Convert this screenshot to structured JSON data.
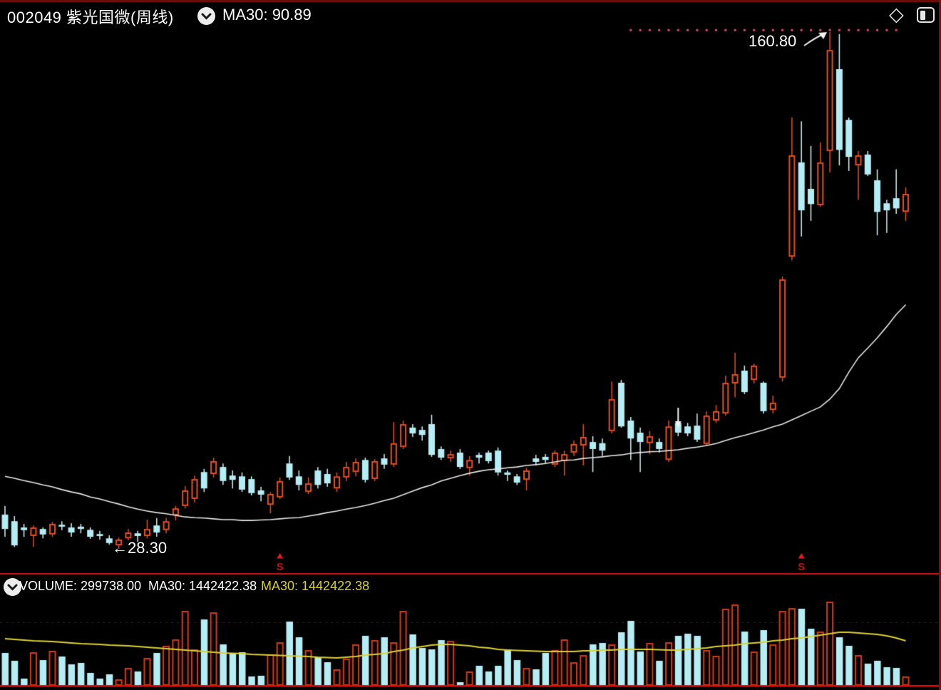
{
  "header": {
    "stock_title": "002049 紫光国微(周线)",
    "ma30_label": "MA30: 90.89"
  },
  "top_icons": {
    "diamond_glyph": "◇",
    "panel_toggle": "split-square-left-filled"
  },
  "volume_header": {
    "volume_label": "VOLUME: 299738.00",
    "ma30_white": "MA30: 1442422.38",
    "ma30_yellow": "MA30: 1442422.38"
  },
  "annotations": {
    "high_label": "160.80",
    "high_arrow_target_index": 87,
    "low_label": "←28.30",
    "low_target_index": 12,
    "sell_marker_glyph": "S",
    "sell_marker_indices": [
      29,
      84
    ],
    "down_arrow_index": 71,
    "ath_dotted_line": {
      "price": 161.3,
      "from_index": 66,
      "to_index": 94
    }
  },
  "colors": {
    "background": "#000000",
    "up_candle": "#e8501e",
    "down_candle": "#b5edf5",
    "down_wick": "#d8f4f8",
    "volume_up_outline": "#d93a12",
    "ma30_price_line": "#e8e8e8",
    "ma30_volume_line": "#ddd22f",
    "separator_red": "#dd1111",
    "border_maroon": "#6e0b0b",
    "ath_dot": "#e8486e",
    "sell_marker_red": "#cf1616",
    "text_white": "#ffffff",
    "text_yellow": "#d6d02c"
  },
  "chart_data": {
    "type": "candlestick",
    "symbol": "002049",
    "name": "紫光国微",
    "period": "周线",
    "legend": [
      "MA30 (price, white)",
      "MA30 (volume, yellow)"
    ],
    "axes": "hidden",
    "price_range_visible": [
      28.3,
      160.8
    ],
    "last_values": {
      "close": 119.3,
      "ma30": 90.89,
      "volume": 299738.0,
      "volume_ma30": 1442422.38
    },
    "candles_format": [
      "open",
      "high",
      "low",
      "close",
      "volume"
    ],
    "candles": [
      [
        37.1,
        39.3,
        31.4,
        33.4,
        1053400
      ],
      [
        35.4,
        36.7,
        28.8,
        29.2,
        801500
      ],
      [
        33.8,
        34.7,
        31.4,
        33.1,
        229000
      ],
      [
        31.6,
        34.3,
        28.8,
        33.8,
        1076300
      ],
      [
        33.4,
        33.8,
        31.0,
        32.0,
        824400
      ],
      [
        32.0,
        35.2,
        31.4,
        34.7,
        1122100
      ],
      [
        34.5,
        35.4,
        33.1,
        34.0,
        938900
      ],
      [
        33.8,
        34.9,
        31.4,
        32.5,
        687000
      ],
      [
        34.0,
        34.7,
        32.3,
        33.4,
        732800
      ],
      [
        33.2,
        33.8,
        30.9,
        31.4,
        412200
      ],
      [
        32.1,
        32.9,
        30.7,
        31.6,
        229000
      ],
      [
        31.0,
        31.8,
        29.4,
        29.8,
        366400
      ],
      [
        29.2,
        31.2,
        28.3,
        30.7,
        206100
      ],
      [
        31.0,
        33.4,
        30.5,
        32.5,
        572500
      ],
      [
        32.3,
        32.9,
        30.1,
        31.6,
        458000
      ],
      [
        31.6,
        35.8,
        31.0,
        33.4,
        893100
      ],
      [
        34.3,
        36.2,
        31.4,
        32.5,
        1053400
      ],
      [
        33.1,
        36.2,
        32.3,
        35.4,
        1282400
      ],
      [
        36.9,
        39.3,
        35.6,
        38.7,
        1488500
      ],
      [
        39.3,
        44.4,
        38.7,
        43.3,
        2404500
      ],
      [
        41.1,
        47.1,
        40.2,
        46.2,
        1167900
      ],
      [
        48.0,
        48.8,
        42.9,
        43.8,
        2129700
      ],
      [
        47.5,
        51.7,
        46.6,
        50.8,
        2358700
      ],
      [
        49.3,
        50.2,
        44.7,
        45.7,
        1328200
      ],
      [
        47.1,
        48.4,
        43.8,
        46.0,
        1053400
      ],
      [
        46.9,
        47.9,
        42.9,
        43.5,
        1076300
      ],
      [
        46.2,
        46.9,
        42.0,
        42.6,
        297700
      ],
      [
        43.3,
        44.2,
        40.5,
        42.2,
        320600
      ],
      [
        39.6,
        42.9,
        37.4,
        42.4,
        1007600
      ],
      [
        41.5,
        46.6,
        41.1,
        45.7,
        1396900
      ],
      [
        50.2,
        52.1,
        46.0,
        46.6,
        2061000
      ],
      [
        46.9,
        48.4,
        43.3,
        44.7,
        1557200
      ],
      [
        42.9,
        46.6,
        42.4,
        45.1,
        1145000
      ],
      [
        48.4,
        49.3,
        43.8,
        44.7,
        916000
      ],
      [
        47.5,
        48.8,
        44.2,
        45.1,
        755700
      ],
      [
        43.8,
        47.9,
        42.9,
        46.9,
        526700
      ],
      [
        46.6,
        50.6,
        45.7,
        49.3,
        870200
      ],
      [
        48.0,
        51.5,
        46.9,
        50.6,
        1328200
      ],
      [
        51.1,
        51.7,
        45.3,
        46.0,
        1603000
      ],
      [
        46.2,
        51.3,
        45.7,
        50.8,
        1465600
      ],
      [
        51.5,
        52.6,
        48.8,
        49.9,
        1557200
      ],
      [
        49.9,
        60.8,
        49.3,
        55.4,
        1396900
      ],
      [
        54.4,
        61.2,
        53.9,
        60.3,
        2404500
      ],
      [
        59.4,
        60.3,
        57.0,
        57.9,
        1648800
      ],
      [
        58.8,
        59.7,
        56.1,
        57.5,
        1213700
      ],
      [
        60.3,
        62.7,
        51.9,
        52.4,
        1167900
      ],
      [
        53.9,
        54.6,
        51.1,
        51.7,
        1465600
      ],
      [
        51.5,
        53.5,
        50.6,
        52.6,
        1442700
      ],
      [
        53.0,
        53.9,
        48.8,
        49.3,
        114500
      ],
      [
        49.0,
        52.1,
        47.1,
        51.1,
        458000
      ],
      [
        52.4,
        53.0,
        50.2,
        51.7,
        641200
      ],
      [
        53.0,
        53.5,
        50.2,
        50.8,
        458000
      ],
      [
        53.5,
        54.3,
        47.1,
        47.9,
        641200
      ],
      [
        47.9,
        48.4,
        45.7,
        47.3,
        1167900
      ],
      [
        46.9,
        47.5,
        44.7,
        45.3,
        824400
      ],
      [
        46.0,
        49.1,
        43.3,
        48.4,
        572500
      ],
      [
        51.5,
        52.4,
        49.7,
        50.6,
        526700
      ],
      [
        51.9,
        52.6,
        50.2,
        51.1,
        1053400
      ],
      [
        49.9,
        53.5,
        49.3,
        53.0,
        1145000
      ],
      [
        50.8,
        53.5,
        47.1,
        52.6,
        1488500
      ],
      [
        53.0,
        56.1,
        52.1,
        55.2,
        755700
      ],
      [
        54.8,
        60.3,
        49.7,
        57.0,
        984700
      ],
      [
        55.7,
        57.2,
        48.0,
        53.9,
        1328200
      ],
      [
        55.4,
        56.6,
        52.1,
        53.5,
        1374000
      ],
      [
        58.5,
        71.2,
        57.9,
        66.7,
        1328200
      ],
      [
        70.9,
        71.6,
        59.4,
        59.7,
        1717500
      ],
      [
        61.2,
        62.1,
        51.1,
        56.6,
        2083900
      ],
      [
        58.1,
        59.4,
        48.0,
        55.7,
        1099200
      ],
      [
        55.4,
        58.5,
        52.6,
        57.2,
        1374000
      ],
      [
        55.7,
        56.6,
        53.0,
        53.9,
        801500
      ],
      [
        51.1,
        61.2,
        50.6,
        59.7,
        1396900
      ],
      [
        60.6,
        61.5,
        57.2,
        58.1,
        1603000
      ],
      [
        59.7,
        60.6,
        57.2,
        57.9,
        1671700
      ],
      [
        59.9,
        63.0,
        55.7,
        56.3,
        1603000
      ],
      [
        55.2,
        63.6,
        54.8,
        62.5,
        1145000
      ],
      [
        61.2,
        65.2,
        60.6,
        63.6,
        961800
      ],
      [
        63.0,
        72.7,
        62.5,
        70.9,
        2473200
      ],
      [
        70.7,
        78.6,
        67.2,
        73.1,
        2610600
      ],
      [
        74.0,
        75.3,
        68.0,
        68.5,
        1740400
      ],
      [
        71.6,
        75.8,
        70.7,
        75.3,
        1099200
      ],
      [
        70.9,
        71.2,
        63.0,
        63.6,
        1786200
      ],
      [
        63.9,
        67.6,
        63.0,
        65.8,
        1328200
      ],
      [
        72.2,
        98.1,
        71.2,
        97.4,
        2404500
      ],
      [
        103.2,
        138.9,
        102.3,
        129.2,
        2496100
      ],
      [
        127.4,
        137.9,
        108.4,
        115.1,
        2473200
      ],
      [
        120.6,
        131.6,
        112.4,
        116.7,
        1832000
      ],
      [
        116.4,
        132.5,
        116.0,
        127.4,
        1740400
      ],
      [
        130.3,
        160.8,
        124.8,
        156.2,
        2702200
      ],
      [
        151.3,
        160.3,
        126.6,
        130.6,
        1557200
      ],
      [
        138.3,
        138.9,
        125.2,
        128.8,
        1282400
      ],
      [
        126.6,
        130.3,
        117.8,
        129.2,
        984700
      ],
      [
        129.4,
        130.3,
        123.9,
        124.3,
        709900
      ],
      [
        122.8,
        125.6,
        108.7,
        114.7,
        801500
      ],
      [
        116.9,
        117.8,
        109.3,
        115.1,
        595400
      ],
      [
        118.2,
        125.6,
        114.2,
        115.6,
        572500
      ],
      [
        114.7,
        121.0,
        112.4,
        119.3,
        299738
      ]
    ],
    "ma30": [
      46.9,
      46.4,
      45.8,
      45.3,
      44.7,
      44.2,
      43.5,
      42.9,
      42.4,
      41.6,
      41.1,
      40.4,
      39.8,
      39.1,
      38.5,
      38.0,
      37.6,
      37.3,
      36.9,
      36.5,
      36.3,
      36.2,
      36.0,
      35.8,
      35.8,
      35.6,
      35.6,
      35.7,
      35.8,
      36.0,
      36.2,
      36.3,
      36.7,
      37.1,
      37.6,
      38.0,
      38.5,
      38.9,
      39.4,
      40.0,
      40.7,
      41.3,
      42.2,
      43.1,
      44.0,
      44.7,
      45.7,
      46.4,
      47.1,
      47.7,
      48.2,
      48.6,
      48.8,
      49.1,
      49.3,
      49.7,
      49.9,
      50.2,
      50.6,
      51.0,
      51.1,
      51.5,
      51.7,
      51.9,
      52.2,
      52.4,
      52.8,
      53.0,
      53.2,
      53.3,
      53.5,
      53.7,
      54.1,
      54.4,
      54.8,
      55.3,
      56.1,
      56.8,
      57.4,
      58.1,
      58.8,
      59.6,
      60.3,
      61.4,
      62.5,
      63.6,
      64.7,
      66.7,
      69.4,
      73.6,
      77.3,
      79.8,
      82.4,
      85.3,
      88.4,
      90.89
    ],
    "volume_ma30": [
      1511400,
      1488500,
      1465600,
      1442700,
      1431300,
      1419800,
      1396900,
      1374000,
      1351100,
      1339700,
      1328200,
      1305300,
      1293900,
      1282400,
      1259500,
      1236600,
      1213700,
      1190800,
      1167900,
      1145000,
      1122100,
      1099200,
      1076300,
      1053400,
      1042000,
      1030500,
      1007600,
      996200,
      984700,
      973300,
      961800,
      950400,
      938900,
      916000,
      904600,
      893100,
      916000,
      938900,
      984700,
      1007600,
      1030500,
      1099200,
      1145000,
      1213700,
      1259500,
      1305300,
      1328200,
      1328200,
      1305300,
      1282400,
      1236600,
      1213700,
      1167900,
      1145000,
      1133600,
      1122100,
      1110700,
      1099200,
      1099200,
      1099200,
      1099200,
      1122100,
      1122100,
      1145000,
      1145000,
      1167900,
      1167900,
      1167900,
      1167900,
      1156500,
      1145000,
      1145000,
      1167900,
      1190800,
      1213700,
      1259500,
      1282400,
      1305300,
      1351100,
      1374000,
      1396900,
      1442700,
      1465600,
      1511400,
      1534300,
      1580100,
      1625900,
      1671700,
      1717500,
      1717500,
      1694600,
      1671700,
      1648800,
      1603000,
      1534300,
      1442422
    ]
  }
}
